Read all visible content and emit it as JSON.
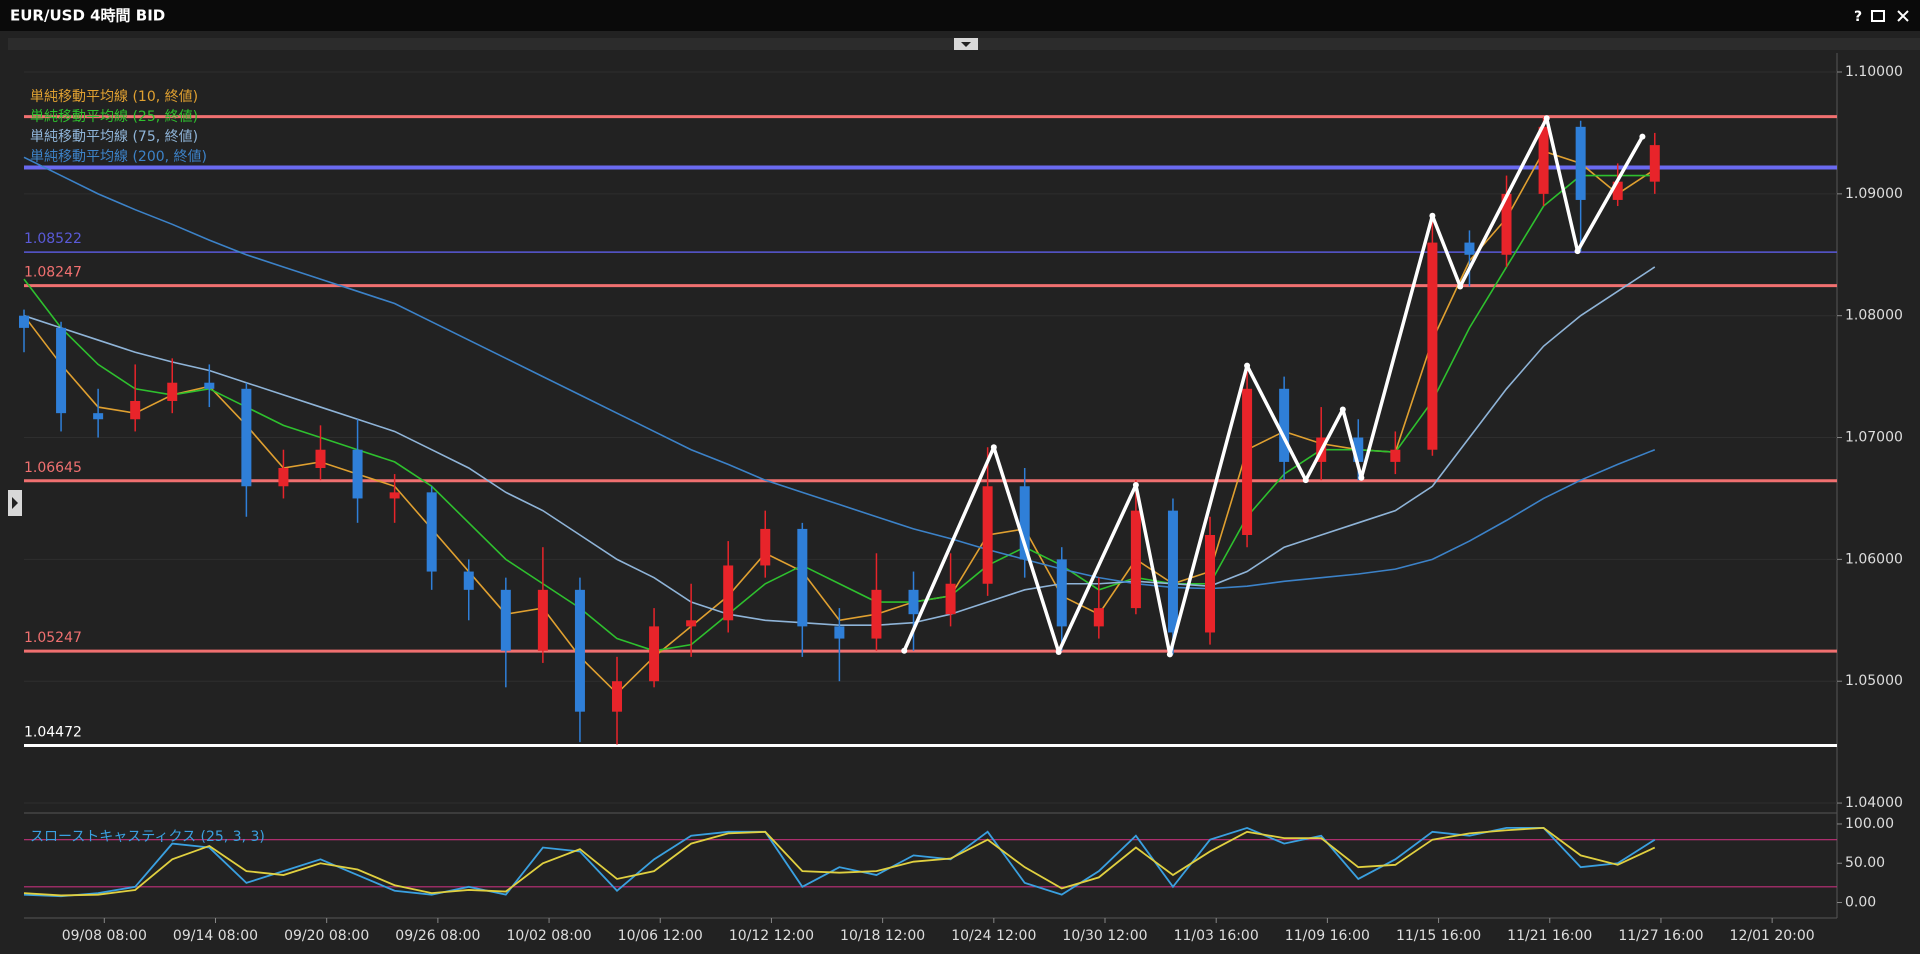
{
  "window": {
    "help": "?"
  },
  "chart_data": [
    {
      "type": "candlestick",
      "title": "EUR/USD 4時間 BID",
      "x": [
        0,
        12,
        24,
        36,
        48,
        60,
        72,
        84,
        96,
        108,
        120,
        132,
        144,
        156,
        168,
        180,
        192,
        204,
        216,
        228,
        240,
        252,
        264,
        276,
        288,
        300,
        312,
        324,
        336,
        348,
        360,
        372,
        384,
        396,
        408,
        420,
        432,
        444,
        456,
        468,
        480,
        492,
        504,
        516,
        528
      ],
      "open": [
        1.08,
        1.079,
        1.072,
        1.0715,
        1.073,
        1.0745,
        1.074,
        1.066,
        1.0675,
        1.069,
        1.065,
        1.0655,
        1.059,
        1.0575,
        1.0525,
        1.0575,
        1.0475,
        1.05,
        1.0545,
        1.055,
        1.0595,
        1.0625,
        1.0545,
        1.0535,
        1.0575,
        1.0555,
        1.058,
        1.066,
        1.06,
        1.0545,
        1.056,
        1.064,
        1.054,
        1.062,
        1.074,
        1.068,
        1.07,
        1.068,
        1.069,
        1.086,
        1.085,
        1.09,
        1.0955,
        1.0895,
        1.091
      ],
      "high": [
        1.0805,
        1.0795,
        1.074,
        1.076,
        1.0765,
        1.076,
        1.0745,
        1.069,
        1.071,
        1.0715,
        1.067,
        1.066,
        1.06,
        1.0585,
        1.061,
        1.0585,
        1.052,
        1.056,
        1.058,
        1.0615,
        1.064,
        1.063,
        1.056,
        1.0605,
        1.059,
        1.0605,
        1.0692,
        1.0675,
        1.061,
        1.0585,
        1.0665,
        1.065,
        1.0635,
        1.076,
        1.075,
        1.0725,
        1.0715,
        1.0705,
        1.0882,
        1.087,
        1.0915,
        1.0963,
        1.096,
        1.0925,
        1.095
      ],
      "low": [
        1.077,
        1.0705,
        1.07,
        1.0705,
        1.072,
        1.0725,
        1.0635,
        1.065,
        1.0665,
        1.063,
        1.063,
        1.0575,
        1.055,
        1.0495,
        1.0515,
        1.045,
        1.0448,
        1.0495,
        1.052,
        1.054,
        1.0585,
        1.052,
        1.05,
        1.0525,
        1.0525,
        1.0545,
        1.057,
        1.0585,
        1.0525,
        1.0535,
        1.0555,
        1.0522,
        1.053,
        1.061,
        1.0665,
        1.0665,
        1.0665,
        1.067,
        1.0685,
        1.0824,
        1.084,
        1.089,
        1.0853,
        1.089,
        1.09
      ],
      "close": [
        1.079,
        1.072,
        1.0715,
        1.073,
        1.0745,
        1.074,
        1.066,
        1.0675,
        1.069,
        1.065,
        1.0655,
        1.059,
        1.0575,
        1.0525,
        1.0575,
        1.0475,
        1.05,
        1.0545,
        1.055,
        1.0595,
        1.0625,
        1.0545,
        1.0535,
        1.0575,
        1.0555,
        1.058,
        1.066,
        1.06,
        1.0545,
        1.056,
        1.064,
        1.054,
        1.062,
        1.074,
        1.068,
        1.07,
        1.068,
        1.069,
        1.086,
        1.085,
        1.09,
        1.0955,
        1.0895,
        1.091,
        1.094
      ],
      "up_color": "#e8242a",
      "down_color": "#2f7fd8",
      "series": [
        {
          "name": "単純移動平均線 (10, 終値)",
          "color": "#e0a030",
          "values": [
            1.08,
            1.076,
            1.0725,
            1.072,
            1.0735,
            1.0742,
            1.071,
            1.0675,
            1.068,
            1.067,
            1.066,
            1.0625,
            1.059,
            1.0555,
            1.056,
            1.052,
            1.049,
            1.052,
            1.0545,
            1.057,
            1.0605,
            1.059,
            1.055,
            1.0555,
            1.0565,
            1.057,
            1.062,
            1.0625,
            1.057,
            1.0555,
            1.06,
            1.058,
            1.059,
            1.069,
            1.0705,
            1.0695,
            1.069,
            1.0688,
            1.078,
            1.0845,
            1.088,
            1.0935,
            1.0925,
            1.09,
            1.092
          ]
        },
        {
          "name": "単純移動平均線 (25, 終値)",
          "color": "#2ec02e",
          "values": [
            1.083,
            1.079,
            1.076,
            1.074,
            1.0735,
            1.074,
            1.0725,
            1.071,
            1.07,
            1.069,
            1.068,
            1.066,
            1.063,
            1.06,
            1.058,
            1.056,
            1.0535,
            1.0525,
            1.053,
            1.0555,
            1.058,
            1.0595,
            1.058,
            1.0565,
            1.0565,
            1.057,
            1.0595,
            1.061,
            1.0595,
            1.0575,
            1.0585,
            1.058,
            1.058,
            1.0635,
            1.067,
            1.069,
            1.069,
            1.0688,
            1.073,
            1.079,
            1.084,
            1.089,
            1.0915,
            1.0915,
            1.0915
          ]
        },
        {
          "name": "単純移動平均線 (75, 終値)",
          "color": "#8fb4d8",
          "values": [
            1.08,
            1.079,
            1.078,
            1.077,
            1.0762,
            1.0755,
            1.0745,
            1.0735,
            1.0725,
            1.0715,
            1.0705,
            1.069,
            1.0675,
            1.0655,
            1.064,
            1.062,
            1.06,
            1.0585,
            1.0565,
            1.0555,
            1.055,
            1.0548,
            1.0546,
            1.0546,
            1.0548,
            1.0555,
            1.0565,
            1.0575,
            1.058,
            1.058,
            1.0582,
            1.058,
            1.0578,
            1.059,
            1.061,
            1.062,
            1.063,
            1.064,
            1.066,
            1.07,
            1.074,
            1.0775,
            1.08,
            1.082,
            1.084
          ]
        },
        {
          "name": "単純移動平均線 (200, 終値)",
          "color": "#3c82c8",
          "values": [
            1.093,
            1.0915,
            1.09,
            1.0887,
            1.0875,
            1.0862,
            1.085,
            1.084,
            1.083,
            1.082,
            1.081,
            1.0795,
            1.078,
            1.0765,
            1.075,
            1.0735,
            1.072,
            1.0705,
            1.069,
            1.0678,
            1.0665,
            1.0655,
            1.0645,
            1.0635,
            1.0625,
            1.0617,
            1.0608,
            1.06,
            1.0592,
            1.0585,
            1.058,
            1.0577,
            1.0576,
            1.0578,
            1.0582,
            1.0585,
            1.0588,
            1.0592,
            1.06,
            1.0615,
            1.0632,
            1.065,
            1.0665,
            1.0678,
            1.069
          ]
        }
      ],
      "levels": [
        {
          "value": 1.09634,
          "color": "#f07070",
          "width": 3,
          "show_label": false
        },
        {
          "value": 1.09216,
          "color": "#6a6af0",
          "width": 4,
          "show_label": false
        },
        {
          "value": 1.08522,
          "color": "#5a5ad8",
          "width": 1.5,
          "show_label": true
        },
        {
          "value": 1.08247,
          "color": "#f07070",
          "width": 3,
          "show_label": true
        },
        {
          "value": 1.06645,
          "color": "#f07070",
          "width": 3,
          "show_label": true
        },
        {
          "value": 1.05247,
          "color": "#f07070",
          "width": 3,
          "show_label": true
        },
        {
          "value": 1.04472,
          "color": "#ffffff",
          "width": 3,
          "show_label": true
        }
      ],
      "zigzag": {
        "color": "#ffffff",
        "x": [
          285,
          314,
          335,
          360,
          371,
          396,
          415,
          427,
          433,
          456,
          465,
          493,
          503,
          524
        ],
        "values": [
          1.0525,
          1.0692,
          1.0524,
          1.0661,
          1.0522,
          1.0759,
          1.0665,
          1.0723,
          1.0667,
          1.0882,
          1.0824,
          1.0962,
          1.0853,
          1.0947
        ]
      },
      "xlim": [
        0,
        587
      ],
      "xticks": [
        {
          "value": 26,
          "label": "09/08 08:00"
        },
        {
          "value": 62,
          "label": "09/14 08:00"
        },
        {
          "value": 98,
          "label": "09/20 08:00"
        },
        {
          "value": 134,
          "label": "09/26 08:00"
        },
        {
          "value": 170,
          "label": "10/02 08:00"
        },
        {
          "value": 206,
          "label": "10/06 12:00"
        },
        {
          "value": 242,
          "label": "10/12 12:00"
        },
        {
          "value": 278,
          "label": "10/18 12:00"
        },
        {
          "value": 314,
          "label": "10/24 12:00"
        },
        {
          "value": 350,
          "label": "10/30 12:00"
        },
        {
          "value": 386,
          "label": "11/03 16:00"
        },
        {
          "value": 422,
          "label": "11/09 16:00"
        },
        {
          "value": 458,
          "label": "11/15 16:00"
        },
        {
          "value": 494,
          "label": "11/21 16:00"
        },
        {
          "value": 530,
          "label": "11/27 16:00"
        },
        {
          "value": 566,
          "label": "12/01 20:00"
        }
      ],
      "ylim": [
        1.03943,
        1.10156
      ],
      "yticks": [
        {
          "value": 1.04,
          "label": "1.04000"
        },
        {
          "value": 1.05,
          "label": "1.05000"
        },
        {
          "value": 1.06,
          "label": "1.06000"
        },
        {
          "value": 1.07,
          "label": "1.07000"
        },
        {
          "value": 1.08,
          "label": "1.08000"
        },
        {
          "value": 1.09,
          "label": "1.09000"
        },
        {
          "value": 1.1,
          "label": "1.10000"
        }
      ],
      "grid": true
    },
    {
      "type": "line",
      "title": "スローストキャスティクス (25, 3, 3)",
      "x": [
        0,
        12,
        24,
        36,
        48,
        60,
        72,
        84,
        96,
        108,
        120,
        132,
        144,
        156,
        168,
        180,
        192,
        204,
        216,
        228,
        240,
        252,
        264,
        276,
        288,
        300,
        312,
        324,
        336,
        348,
        360,
        372,
        384,
        396,
        408,
        420,
        432,
        444,
        456,
        468,
        480,
        492,
        504,
        516,
        528
      ],
      "series": [
        {
          "color": "#3aa0e0",
          "values": [
            10,
            8,
            12,
            20,
            75,
            70,
            25,
            40,
            55,
            35,
            15,
            10,
            20,
            10,
            70,
            65,
            15,
            55,
            85,
            90,
            90,
            20,
            45,
            35,
            60,
            55,
            90,
            25,
            10,
            40,
            85,
            20,
            80,
            95,
            75,
            85,
            30,
            55,
            90,
            85,
            95,
            95,
            45,
            50,
            80
          ]
        },
        {
          "color": "#e0d040",
          "values": [
            12,
            9,
            10,
            16,
            55,
            72,
            40,
            35,
            50,
            42,
            22,
            12,
            16,
            14,
            50,
            68,
            30,
            40,
            75,
            88,
            90,
            40,
            38,
            40,
            52,
            56,
            80,
            45,
            18,
            32,
            70,
            35,
            65,
            90,
            82,
            82,
            45,
            48,
            80,
            88,
            92,
            95,
            60,
            48,
            70
          ]
        }
      ],
      "levels": [
        {
          "value": 80,
          "color": "#c0307a"
        },
        {
          "value": 20,
          "color": "#c0307a"
        }
      ],
      "xlim": [
        0,
        587
      ],
      "ylim": [
        -19.7,
        107.6
      ],
      "yticks": [
        {
          "value": 0,
          "label": "0.00"
        },
        {
          "value": 50,
          "label": "50.00"
        },
        {
          "value": 100,
          "label": "100.00"
        }
      ]
    }
  ]
}
